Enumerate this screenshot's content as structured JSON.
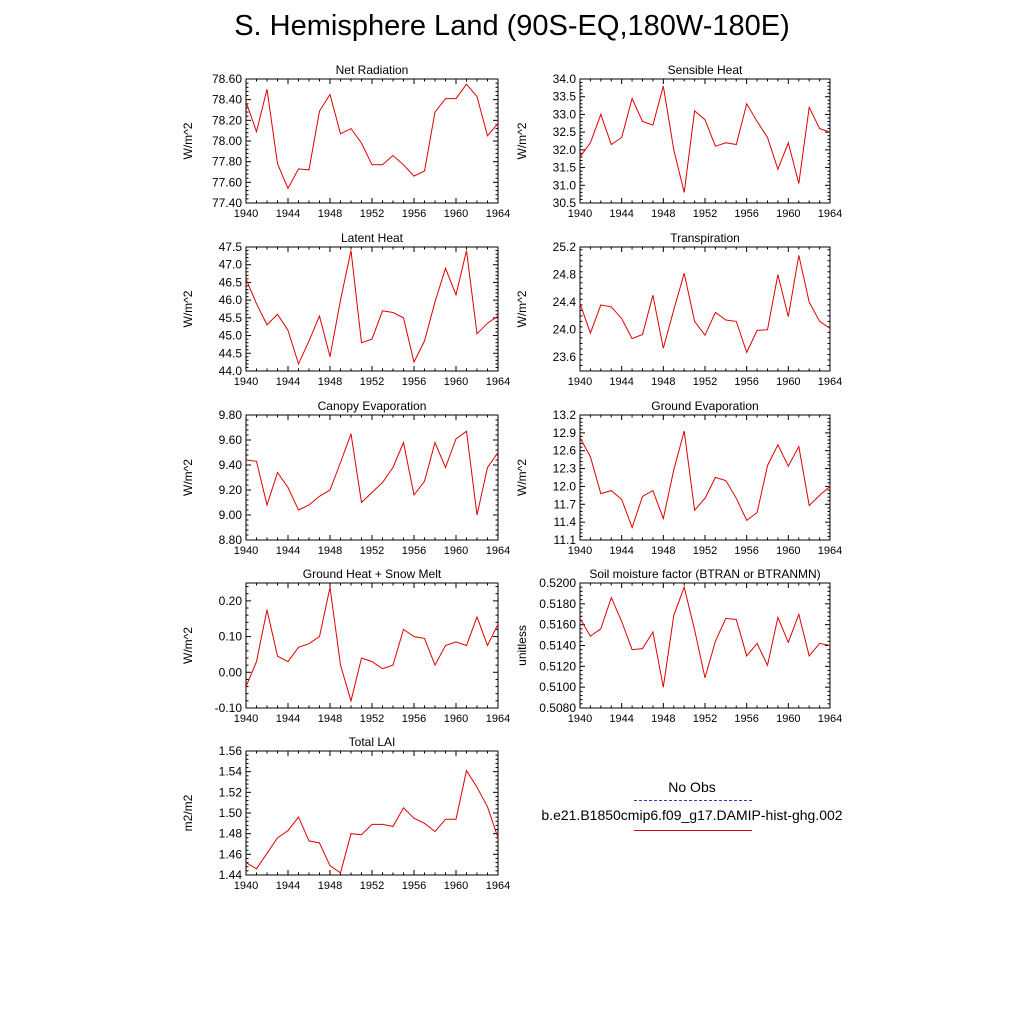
{
  "title": "S. Hemisphere Land (90S-EQ,180W-180E)",
  "legend": {
    "obs_label": "No Obs",
    "model_label": "b.e21.B1850cmip6.f09_g17.DAMIP-hist-ghg.002",
    "obs_color": "#2b3fa8",
    "model_color": "#e00000"
  },
  "chart_data": [
    {
      "type": "line",
      "title": "Net Radiation",
      "ylabel": "W/m^2",
      "xlabel": "",
      "xlim": [
        1940,
        1964
      ],
      "ylim": [
        77.4,
        78.6
      ],
      "yticks": [
        "77.40",
        "77.60",
        "77.80",
        "78.00",
        "78.20",
        "78.40",
        "78.60"
      ],
      "xticks": [
        "1940",
        "1944",
        "1948",
        "1952",
        "1956",
        "1960",
        "1964"
      ],
      "x": [
        1940,
        1941,
        1942,
        1943,
        1944,
        1945,
        1946,
        1947,
        1948,
        1949,
        1950,
        1951,
        1952,
        1953,
        1954,
        1955,
        1956,
        1957,
        1958,
        1959,
        1960,
        1961,
        1962,
        1963,
        1964
      ],
      "series": [
        {
          "values": [
            78.38,
            78.09,
            78.5,
            77.78,
            77.54,
            77.73,
            77.72,
            78.29,
            78.45,
            78.07,
            78.12,
            77.98,
            77.77,
            77.77,
            77.86,
            77.77,
            77.66,
            77.71,
            78.28,
            78.41,
            78.41,
            78.55,
            78.43,
            78.05,
            78.17
          ]
        }
      ]
    },
    {
      "type": "line",
      "title": "Sensible Heat",
      "ylabel": "W/m^2",
      "xlabel": "",
      "xlim": [
        1940,
        1964
      ],
      "ylim": [
        30.5,
        34.0
      ],
      "yticks": [
        "30.5",
        "31.0",
        "31.5",
        "32.0",
        "32.5",
        "33.0",
        "33.5",
        "34.0"
      ],
      "xticks": [
        "1940",
        "1944",
        "1948",
        "1952",
        "1956",
        "1960",
        "1964"
      ],
      "x": [
        1940,
        1941,
        1942,
        1943,
        1944,
        1945,
        1946,
        1947,
        1948,
        1949,
        1950,
        1951,
        1952,
        1953,
        1954,
        1955,
        1956,
        1957,
        1958,
        1959,
        1960,
        1961,
        1962,
        1963,
        1964
      ],
      "series": [
        {
          "values": [
            31.8,
            32.2,
            33.0,
            32.15,
            32.35,
            33.45,
            32.8,
            32.7,
            33.8,
            32.0,
            30.8,
            33.1,
            32.85,
            32.1,
            32.2,
            32.15,
            33.3,
            32.8,
            32.35,
            31.45,
            32.2,
            31.05,
            33.2,
            32.6,
            32.5
          ]
        }
      ]
    },
    {
      "type": "line",
      "title": "Latent Heat",
      "ylabel": "W/m^2",
      "xlabel": "",
      "xlim": [
        1940,
        1964
      ],
      "ylim": [
        44.0,
        47.5
      ],
      "yticks": [
        "44.0",
        "44.5",
        "45.0",
        "45.5",
        "46.0",
        "46.5",
        "47.0",
        "47.5"
      ],
      "xticks": [
        "1940",
        "1944",
        "1948",
        "1952",
        "1956",
        "1960",
        "1964"
      ],
      "x": [
        1940,
        1941,
        1942,
        1943,
        1944,
        1945,
        1946,
        1947,
        1948,
        1949,
        1950,
        1951,
        1952,
        1953,
        1954,
        1955,
        1956,
        1957,
        1958,
        1959,
        1960,
        1961,
        1962,
        1963,
        1964
      ],
      "series": [
        {
          "values": [
            46.6,
            45.9,
            45.3,
            45.6,
            45.15,
            44.2,
            44.85,
            45.55,
            44.4,
            46.0,
            47.4,
            44.8,
            44.9,
            45.7,
            45.65,
            45.5,
            44.25,
            44.85,
            45.95,
            46.9,
            46.15,
            47.4,
            45.05,
            45.35,
            45.55
          ]
        }
      ]
    },
    {
      "type": "line",
      "title": "Transpiration",
      "ylabel": "W/m^2",
      "xlabel": "",
      "xlim": [
        1940,
        1964
      ],
      "ylim": [
        23.4,
        25.2
      ],
      "yticks": [
        "23.6",
        "24.0",
        "24.4",
        "24.8",
        "25.2"
      ],
      "xticks": [
        "1940",
        "1944",
        "1948",
        "1952",
        "1956",
        "1960",
        "1964"
      ],
      "x": [
        1940,
        1941,
        1942,
        1943,
        1944,
        1945,
        1946,
        1947,
        1948,
        1949,
        1950,
        1951,
        1952,
        1953,
        1954,
        1955,
        1956,
        1957,
        1958,
        1959,
        1960,
        1961,
        1962,
        1963,
        1964
      ],
      "series": [
        {
          "values": [
            24.38,
            23.95,
            24.36,
            24.33,
            24.16,
            23.87,
            23.93,
            24.5,
            23.73,
            24.29,
            24.82,
            24.12,
            23.92,
            24.25,
            24.14,
            24.12,
            23.67,
            23.99,
            24.0,
            24.8,
            24.19,
            25.08,
            24.4,
            24.12,
            24.02
          ]
        }
      ]
    },
    {
      "type": "line",
      "title": "Canopy Evaporation",
      "ylabel": "W/m^2",
      "xlabel": "",
      "xlim": [
        1940,
        1964
      ],
      "ylim": [
        8.8,
        9.8
      ],
      "yticks": [
        "8.80",
        "9.00",
        "9.20",
        "9.40",
        "9.60",
        "9.80"
      ],
      "xticks": [
        "1940",
        "1944",
        "1948",
        "1952",
        "1956",
        "1960",
        "1964"
      ],
      "x": [
        1940,
        1941,
        1942,
        1943,
        1944,
        1945,
        1946,
        1947,
        1948,
        1949,
        1950,
        1951,
        1952,
        1953,
        1954,
        1955,
        1956,
        1957,
        1958,
        1959,
        1960,
        1961,
        1962,
        1963,
        1964
      ],
      "series": [
        {
          "values": [
            9.44,
            9.43,
            9.08,
            9.34,
            9.22,
            9.04,
            9.08,
            9.15,
            9.2,
            9.42,
            9.65,
            9.1,
            9.18,
            9.26,
            9.38,
            9.58,
            9.16,
            9.27,
            9.58,
            9.38,
            9.61,
            9.67,
            9.0,
            9.38,
            9.5
          ]
        }
      ]
    },
    {
      "type": "line",
      "title": "Ground Evaporation",
      "ylabel": "W/m^2",
      "xlabel": "",
      "xlim": [
        1940,
        1964
      ],
      "ylim": [
        11.1,
        13.2
      ],
      "yticks": [
        "11.1",
        "11.4",
        "11.7",
        "12.0",
        "12.3",
        "12.6",
        "12.9",
        "13.2"
      ],
      "xticks": [
        "1940",
        "1944",
        "1948",
        "1952",
        "1956",
        "1960",
        "1964"
      ],
      "x": [
        1940,
        1941,
        1942,
        1943,
        1944,
        1945,
        1946,
        1947,
        1948,
        1949,
        1950,
        1951,
        1952,
        1953,
        1954,
        1955,
        1956,
        1957,
        1958,
        1959,
        1960,
        1961,
        1962,
        1963,
        1964
      ],
      "series": [
        {
          "values": [
            12.82,
            12.5,
            11.88,
            11.93,
            11.78,
            11.31,
            11.83,
            11.93,
            11.46,
            12.28,
            12.93,
            11.6,
            11.8,
            12.15,
            12.1,
            11.8,
            11.43,
            11.56,
            12.35,
            12.7,
            12.34,
            12.67,
            11.68,
            11.85,
            12.0
          ]
        }
      ]
    },
    {
      "type": "line",
      "title": "Ground Heat + Snow Melt",
      "ylabel": "W/m^2",
      "xlabel": "",
      "xlim": [
        1940,
        1964
      ],
      "ylim": [
        -0.1,
        0.25
      ],
      "yticks": [
        "-0.10",
        "0.00",
        "0.10",
        "0.20"
      ],
      "xticks": [
        "1940",
        "1944",
        "1948",
        "1952",
        "1956",
        "1960",
        "1964"
      ],
      "x": [
        1940,
        1941,
        1942,
        1943,
        1944,
        1945,
        1946,
        1947,
        1948,
        1949,
        1950,
        1951,
        1952,
        1953,
        1954,
        1955,
        1956,
        1957,
        1958,
        1959,
        1960,
        1961,
        1962,
        1963,
        1964
      ],
      "series": [
        {
          "values": [
            -0.04,
            0.03,
            0.175,
            0.045,
            0.03,
            0.07,
            0.08,
            0.1,
            0.238,
            0.02,
            -0.08,
            0.04,
            0.03,
            0.01,
            0.02,
            0.12,
            0.1,
            0.095,
            0.02,
            0.075,
            0.085,
            0.075,
            0.155,
            0.075,
            0.135
          ]
        }
      ]
    },
    {
      "type": "line",
      "title": "Soil moisture factor (BTRAN or BTRANMN)",
      "ylabel": "unitless",
      "xlabel": "",
      "xlim": [
        1940,
        1964
      ],
      "ylim": [
        0.508,
        0.52
      ],
      "yticks": [
        "0.5080",
        "0.5100",
        "0.5120",
        "0.5140",
        "0.5160",
        "0.5180",
        "0.5200"
      ],
      "xticks": [
        "1940",
        "1944",
        "1948",
        "1952",
        "1956",
        "1960",
        "1964"
      ],
      "x": [
        1940,
        1941,
        1942,
        1943,
        1944,
        1945,
        1946,
        1947,
        1948,
        1949,
        1950,
        1951,
        1952,
        1953,
        1954,
        1955,
        1956,
        1957,
        1958,
        1959,
        1960,
        1961,
        1962,
        1963,
        1964
      ],
      "series": [
        {
          "values": [
            0.5166,
            0.5149,
            0.5156,
            0.5186,
            0.5163,
            0.5136,
            0.5137,
            0.5153,
            0.51,
            0.5169,
            0.5196,
            0.5155,
            0.5109,
            0.5144,
            0.5166,
            0.5165,
            0.513,
            0.5142,
            0.5121,
            0.5167,
            0.5143,
            0.517,
            0.513,
            0.5142,
            0.514
          ]
        }
      ]
    },
    {
      "type": "line",
      "title": "Total LAI",
      "ylabel": "m2/m2",
      "xlabel": "",
      "xlim": [
        1940,
        1964
      ],
      "ylim": [
        1.44,
        1.56
      ],
      "yticks": [
        "1.44",
        "1.46",
        "1.48",
        "1.50",
        "1.52",
        "1.54",
        "1.56"
      ],
      "xticks": [
        "1940",
        "1944",
        "1948",
        "1952",
        "1956",
        "1960",
        "1964"
      ],
      "x": [
        1940,
        1941,
        1942,
        1943,
        1944,
        1945,
        1946,
        1947,
        1948,
        1949,
        1950,
        1951,
        1952,
        1953,
        1954,
        1955,
        1956,
        1957,
        1958,
        1959,
        1960,
        1961,
        1962,
        1963,
        1964
      ],
      "series": [
        {
          "values": [
            1.452,
            1.446,
            1.461,
            1.476,
            1.483,
            1.496,
            1.473,
            1.471,
            1.449,
            1.442,
            1.48,
            1.479,
            1.489,
            1.489,
            1.487,
            1.505,
            1.495,
            1.49,
            1.482,
            1.494,
            1.494,
            1.541,
            1.525,
            1.506,
            1.476
          ]
        }
      ]
    }
  ]
}
